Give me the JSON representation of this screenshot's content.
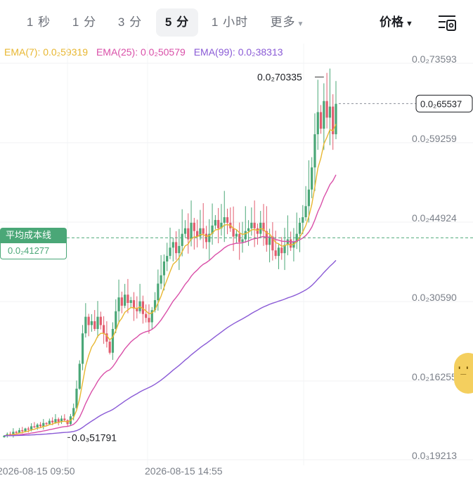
{
  "tabs": [
    {
      "label": "1 秒",
      "active": false
    },
    {
      "label": "1 分",
      "active": false
    },
    {
      "label": "3 分",
      "active": false
    },
    {
      "label": "5 分",
      "active": true
    },
    {
      "label": "1 小时",
      "active": false
    },
    {
      "label": "更多",
      "active": false,
      "dropdown": true
    }
  ],
  "price_dropdown": {
    "label": "价格"
  },
  "icons": {
    "settings": "chart-settings-icon",
    "caret": "caret-down-icon"
  },
  "ema_legend": [
    {
      "label": "EMA(7): 0.0₂59319",
      "color": "#e8b731"
    },
    {
      "label": "EMA(25): 0.0₂50579",
      "color": "#d94fa8"
    },
    {
      "label": "EMA(99): 0.0₂38313",
      "color": "#8a5ad6"
    }
  ],
  "avg_cost": {
    "title": "平均成本线",
    "value": "0.0₂41277"
  },
  "last_price": "0.0₂65537",
  "colors": {
    "up": "#4aa777",
    "down": "#e25c6e",
    "ema7": "#e8b731",
    "ema25": "#d94fa8",
    "ema99": "#8a5ad6"
  },
  "chart_data": {
    "type": "candlestick",
    "y_axis_labels": [
      "0.0₂73593",
      "0.0₂59259",
      "0.0₂44924",
      "0.0₂30590",
      "0.0₂16255",
      "0.0₃19213"
    ],
    "y_axis_values": [
      0.0073593,
      0.0059259,
      0.0044924,
      0.003059,
      0.0016255,
      0.00019213
    ],
    "x_axis_labels": [
      "2026-08-15 09:50",
      "2026-08-15 14:55"
    ],
    "annotations": {
      "high_label": "0.0₂70335",
      "high_value": 0.0070335,
      "low_label": "0.0₃51791",
      "low_value": 0.00051791
    },
    "last_price_value": 0.0065537,
    "avg_cost_value": 0.0041277,
    "series_close": [
      0.00055,
      0.00058,
      0.00056,
      0.00062,
      0.0006,
      0.00065,
      0.00063,
      0.00068,
      0.00066,
      0.00072,
      0.0007,
      0.00075,
      0.00072,
      0.00078,
      0.00076,
      0.00082,
      0.00079,
      0.00085,
      0.0008,
      0.00086,
      0.00083,
      0.00076,
      0.0009,
      0.00105,
      0.0014,
      0.00185,
      0.0024,
      0.0027,
      0.00255,
      0.00262,
      0.00248,
      0.0027,
      0.00255,
      0.0024,
      0.00225,
      0.00205,
      0.00248,
      0.0028,
      0.00305,
      0.0029,
      0.0031,
      0.00295,
      0.003,
      0.00285,
      0.0028,
      0.00298,
      0.00275,
      0.00268,
      0.0026,
      0.00282,
      0.003,
      0.0033,
      0.00345,
      0.0037,
      0.0038,
      0.00395,
      0.00405,
      0.00385,
      0.00398,
      0.0042,
      0.0043,
      0.0041,
      0.0044,
      0.00425,
      0.00415,
      0.0043,
      0.0042,
      0.00405,
      0.0042,
      0.00435,
      0.00445,
      0.0043,
      0.0044,
      0.0045,
      0.0044,
      0.0043,
      0.00415,
      0.0042,
      0.00405,
      0.0041,
      0.00425,
      0.0043,
      0.0044,
      0.0043,
      0.0042,
      0.0044,
      0.00425,
      0.004,
      0.00415,
      0.0039,
      0.0038,
      0.00395,
      0.00385,
      0.004,
      0.0041,
      0.00395,
      0.00405,
      0.0042,
      0.0044,
      0.0045,
      0.0047,
      0.005,
      0.0054,
      0.006,
      0.0064,
      0.0061,
      0.0066,
      0.0063,
      0.0065,
      0.006,
      0.00655
    ]
  }
}
